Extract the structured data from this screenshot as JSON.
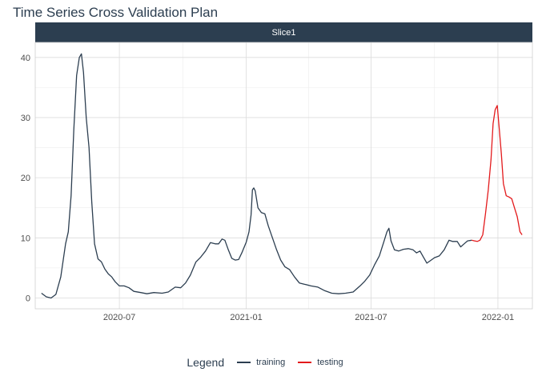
{
  "chart_data": {
    "type": "line",
    "title": "Time Series Cross Validation Plan",
    "facet_label": "Slice1",
    "xlabel": "",
    "ylabel": "",
    "xlim": [
      "2020-03-01",
      "2022-02-20"
    ],
    "ylim": [
      -1.8,
      42.5
    ],
    "y_ticks": [
      0,
      10,
      20,
      30,
      40
    ],
    "x_ticks": [
      {
        "date": "2020-07-01",
        "label": "2020-07"
      },
      {
        "date": "2021-01-01",
        "label": "2021-01"
      },
      {
        "date": "2021-07-01",
        "label": "2021-07"
      },
      {
        "date": "2022-01-01",
        "label": "2022-01"
      }
    ],
    "grid": true,
    "legend": {
      "title": "Legend",
      "position": "bottom"
    },
    "series": [
      {
        "name": "training",
        "color": "#2c3e50",
        "points": [
          [
            "2020-03-10",
            0.8
          ],
          [
            "2020-03-17",
            0.2
          ],
          [
            "2020-03-24",
            0.0
          ],
          [
            "2020-03-31",
            0.6
          ],
          [
            "2020-04-07",
            3.5
          ],
          [
            "2020-04-14",
            9.0
          ],
          [
            "2020-04-18",
            11.0
          ],
          [
            "2020-04-22",
            17.0
          ],
          [
            "2020-04-26",
            28.0
          ],
          [
            "2020-04-30",
            37.0
          ],
          [
            "2020-05-04",
            40.0
          ],
          [
            "2020-05-07",
            40.6
          ],
          [
            "2020-05-10",
            37.5
          ],
          [
            "2020-05-14",
            30.0
          ],
          [
            "2020-05-18",
            25.0
          ],
          [
            "2020-05-22",
            16.0
          ],
          [
            "2020-05-26",
            9.0
          ],
          [
            "2020-05-31",
            6.5
          ],
          [
            "2020-06-05",
            6.0
          ],
          [
            "2020-06-10",
            4.8
          ],
          [
            "2020-06-15",
            4.0
          ],
          [
            "2020-06-20",
            3.5
          ],
          [
            "2020-06-25",
            2.7
          ],
          [
            "2020-07-01",
            2.0
          ],
          [
            "2020-07-08",
            2.0
          ],
          [
            "2020-07-15",
            1.7
          ],
          [
            "2020-07-22",
            1.1
          ],
          [
            "2020-08-01",
            0.9
          ],
          [
            "2020-08-10",
            0.7
          ],
          [
            "2020-08-20",
            0.9
          ],
          [
            "2020-09-01",
            0.8
          ],
          [
            "2020-09-10",
            1.0
          ],
          [
            "2020-09-20",
            1.8
          ],
          [
            "2020-09-28",
            1.7
          ],
          [
            "2020-10-05",
            2.5
          ],
          [
            "2020-10-12",
            3.8
          ],
          [
            "2020-10-20",
            6.0
          ],
          [
            "2020-10-27",
            6.8
          ],
          [
            "2020-11-03",
            7.8
          ],
          [
            "2020-11-10",
            9.2
          ],
          [
            "2020-11-17",
            9.0
          ],
          [
            "2020-11-22",
            9.0
          ],
          [
            "2020-11-27",
            9.8
          ],
          [
            "2020-12-01",
            9.6
          ],
          [
            "2020-12-06",
            8.0
          ],
          [
            "2020-12-11",
            6.6
          ],
          [
            "2020-12-16",
            6.3
          ],
          [
            "2020-12-21",
            6.4
          ],
          [
            "2020-12-26",
            7.6
          ],
          [
            "2021-01-01",
            9.3
          ],
          [
            "2021-01-05",
            11.0
          ],
          [
            "2021-01-08",
            13.8
          ],
          [
            "2021-01-10",
            18.0
          ],
          [
            "2021-01-12",
            18.3
          ],
          [
            "2021-01-14",
            17.8
          ],
          [
            "2021-01-18",
            15.0
          ],
          [
            "2021-01-23",
            14.2
          ],
          [
            "2021-01-28",
            14.0
          ],
          [
            "2021-02-02",
            12.0
          ],
          [
            "2021-02-08",
            10.0
          ],
          [
            "2021-02-14",
            8.0
          ],
          [
            "2021-02-20",
            6.3
          ],
          [
            "2021-02-26",
            5.2
          ],
          [
            "2021-03-05",
            4.7
          ],
          [
            "2021-03-12",
            3.5
          ],
          [
            "2021-03-19",
            2.5
          ],
          [
            "2021-03-26",
            2.3
          ],
          [
            "2021-04-05",
            2.0
          ],
          [
            "2021-04-15",
            1.8
          ],
          [
            "2021-04-25",
            1.2
          ],
          [
            "2021-05-05",
            0.8
          ],
          [
            "2021-05-15",
            0.7
          ],
          [
            "2021-05-25",
            0.8
          ],
          [
            "2021-06-05",
            1.0
          ],
          [
            "2021-06-15",
            2.0
          ],
          [
            "2021-06-22",
            2.8
          ],
          [
            "2021-06-29",
            3.8
          ],
          [
            "2021-07-06",
            5.5
          ],
          [
            "2021-07-13",
            7.0
          ],
          [
            "2021-07-20",
            9.5
          ],
          [
            "2021-07-24",
            11.0
          ],
          [
            "2021-07-27",
            11.6
          ],
          [
            "2021-07-30",
            9.5
          ],
          [
            "2021-08-04",
            8.0
          ],
          [
            "2021-08-10",
            7.8
          ],
          [
            "2021-08-17",
            8.1
          ],
          [
            "2021-08-24",
            8.2
          ],
          [
            "2021-08-31",
            8.0
          ],
          [
            "2021-09-05",
            7.5
          ],
          [
            "2021-09-10",
            7.8
          ],
          [
            "2021-09-15",
            6.8
          ],
          [
            "2021-09-20",
            5.8
          ],
          [
            "2021-09-25",
            6.2
          ],
          [
            "2021-10-01",
            6.7
          ],
          [
            "2021-10-08",
            7.0
          ],
          [
            "2021-10-15",
            8.0
          ],
          [
            "2021-10-22",
            9.6
          ],
          [
            "2021-10-27",
            9.4
          ],
          [
            "2021-11-03",
            9.4
          ],
          [
            "2021-11-08",
            8.5
          ],
          [
            "2021-11-13",
            9.0
          ],
          [
            "2021-11-18",
            9.5
          ],
          [
            "2021-11-24",
            9.6
          ]
        ]
      },
      {
        "name": "testing",
        "color": "#e31a1c",
        "points": [
          [
            "2021-11-24",
            9.6
          ],
          [
            "2021-11-28",
            9.5
          ],
          [
            "2021-12-02",
            9.4
          ],
          [
            "2021-12-06",
            9.6
          ],
          [
            "2021-12-10",
            10.5
          ],
          [
            "2021-12-14",
            14.0
          ],
          [
            "2021-12-18",
            18.0
          ],
          [
            "2021-12-22",
            23.0
          ],
          [
            "2021-12-25",
            29.0
          ],
          [
            "2021-12-28",
            31.3
          ],
          [
            "2021-12-31",
            32.0
          ],
          [
            "2022-01-03",
            28.0
          ],
          [
            "2022-01-06",
            24.0
          ],
          [
            "2022-01-09",
            19.0
          ],
          [
            "2022-01-13",
            17.0
          ],
          [
            "2022-01-17",
            16.8
          ],
          [
            "2022-01-21",
            16.5
          ],
          [
            "2022-01-25",
            15.0
          ],
          [
            "2022-01-29",
            13.5
          ],
          [
            "2022-02-02",
            11.0
          ],
          [
            "2022-02-05",
            10.5
          ]
        ]
      }
    ]
  }
}
